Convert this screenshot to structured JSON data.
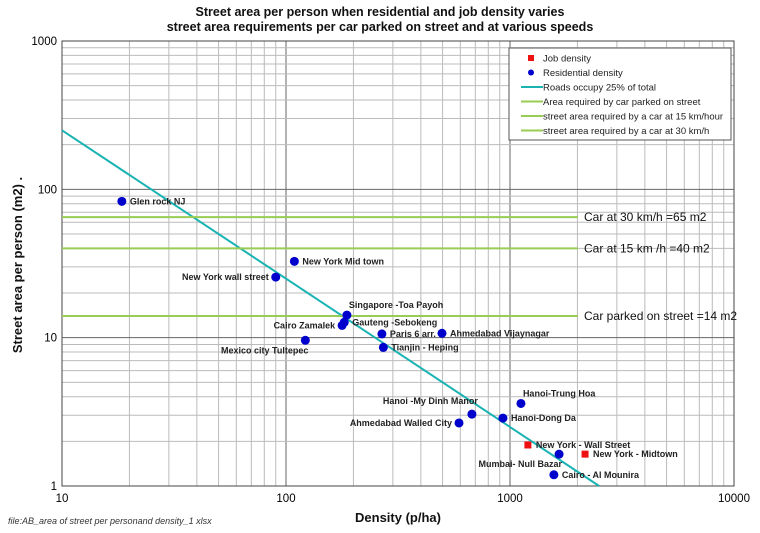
{
  "chart_data": {
    "type": "scatter",
    "title": [
      "Street area per person when residential and job density varies",
      "street area requirements per car parked on street and at various speeds"
    ],
    "xlabel": "Density (p/ha)",
    "ylabel": "Street area per person (m2) .",
    "xscale": "log",
    "yscale": "log",
    "xlim": [
      10,
      10000
    ],
    "ylim": [
      1,
      1000
    ],
    "xticks": [
      "10",
      "100",
      "1000",
      "10000"
    ],
    "yticks": [
      "1",
      "10",
      "100",
      "1000"
    ],
    "grid": true,
    "legend_position": "top-right",
    "legend": [
      "Job density",
      "Residential density",
      "Roads occupy 25% of total",
      "Area required by car parked on street",
      "street area required by a car at 15 km/hour",
      "street area required by a car at 30 km/h"
    ],
    "series": [
      {
        "name": "Residential density",
        "color": "#0000cc",
        "points": [
          {
            "label": "Glen rock NJ",
            "x": 18.5,
            "y": 83,
            "side": "right"
          },
          {
            "label": "New York Mid town",
            "x": 109,
            "y": 32.7,
            "side": "right"
          },
          {
            "label": "New York  wall street",
            "x": 90,
            "y": 25.6,
            "side": "left"
          },
          {
            "label": "Singapore -Toa Payoh",
            "x": 187,
            "y": 14.2,
            "side": "above-right"
          },
          {
            "label": "Gauteng -Sebokeng",
            "x": 182,
            "y": 12.7,
            "side": "right"
          },
          {
            "label": "Cairo Zamalek",
            "x": 178,
            "y": 12.1,
            "side": "left"
          },
          {
            "label": "Paris 6 arr.",
            "x": 268,
            "y": 10.6,
            "side": "right"
          },
          {
            "label": "Ahmedabad Vijaynagar",
            "x": 497,
            "y": 10.7,
            "side": "right"
          },
          {
            "label": "Mexico city  Tultepec",
            "x": 122,
            "y": 9.6,
            "side": "below-left"
          },
          {
            "label": "Tianjin - Heping",
            "x": 272,
            "y": 8.6,
            "side": "right"
          },
          {
            "label": "Hanoi-Trung  Hoa",
            "x": 1119,
            "y": 3.6,
            "side": "above-right"
          },
          {
            "label": "Hanoi -My Dinh Manor",
            "x": 676,
            "y": 3.05,
            "side": "above-left"
          },
          {
            "label": "Hanoi-Dong  Da",
            "x": 930,
            "y": 2.87,
            "side": "right"
          },
          {
            "label": "Ahmedabad Walled City",
            "x": 592,
            "y": 2.66,
            "side": "left"
          },
          {
            "label": "Mumbai- Null Bazar",
            "x": 1656,
            "y": 1.64,
            "side": "below-left"
          },
          {
            "label": "Cairo - Al Mounira",
            "x": 1570,
            "y": 1.19,
            "side": "right"
          }
        ]
      },
      {
        "name": "Job density",
        "color": "#ee1111",
        "points": [
          {
            "label": "New York - Wall Street",
            "x": 1202,
            "y": 1.89,
            "side": "right"
          },
          {
            "label": "New York - Midtown",
            "x": 2163,
            "y": 1.64,
            "side": "right"
          }
        ]
      }
    ],
    "lines": [
      {
        "name": "Roads occupy 25% of total",
        "type": "x*y=const",
        "k": 2500,
        "color": "#1ab3b3"
      },
      {
        "name": "Area required by car parked on street",
        "type": "horizontal",
        "y": 14,
        "color": "#99cc55",
        "annotation": "Car parked on street =14 m2"
      },
      {
        "name": "street area required by a car at 15 km/hour",
        "type": "horizontal",
        "y": 40,
        "color": "#99cc55",
        "annotation": "Car at 15 km /h =40 m2"
      },
      {
        "name": "street area required by a car at 30 km/h",
        "type": "horizontal",
        "y": 65,
        "color": "#99cc55",
        "annotation": "Car at 30 km/h =65 m2"
      }
    ]
  },
  "footer": "file:AB_area of street per personand density_1 xlsx"
}
